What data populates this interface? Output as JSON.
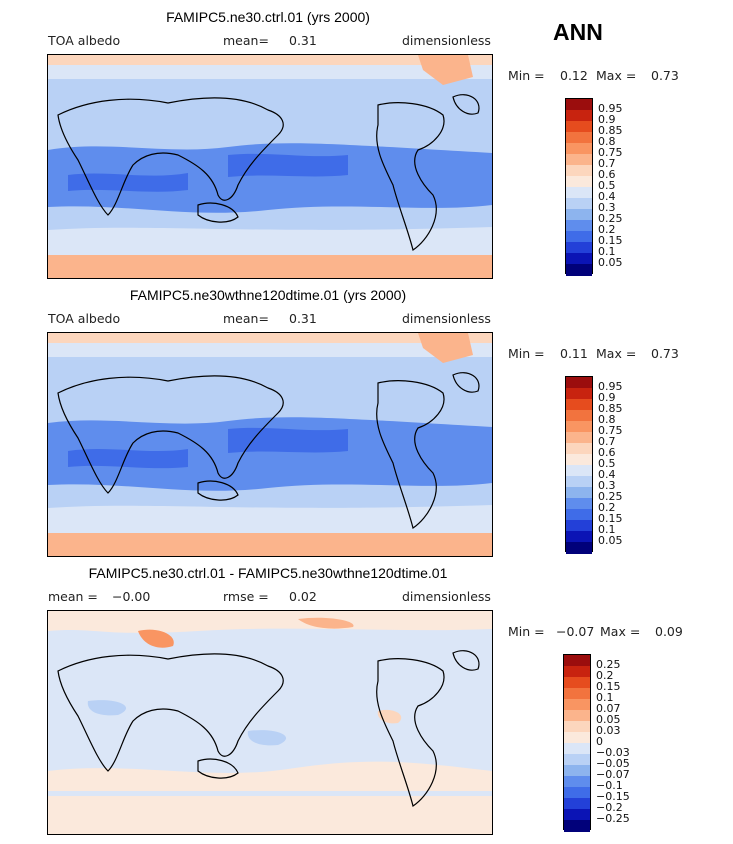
{
  "season": "ANN",
  "panels": [
    {
      "id": "ctrl",
      "title": "FAMIPC5.ne30.ctrl.01 (yrs 2000)",
      "left_label": "TOA albedo",
      "mean_label": "mean=",
      "mean_value": "0.31",
      "units": "dimensionless",
      "min_label": "Min =",
      "min_value": "0.12",
      "max_label": "Max =",
      "max_value": "0.73",
      "colorbar": {
        "labels": [
          "0.95",
          "0.9",
          "0.85",
          "0.8",
          "0.75",
          "0.7",
          "0.6",
          "0.5",
          "0.4",
          "0.3",
          "0.25",
          "0.2",
          "0.15",
          "0.1",
          "0.05"
        ],
        "colors": [
          "#9b0d0d",
          "#c8230f",
          "#e64c1e",
          "#f2733e",
          "#f99562",
          "#fbb48c",
          "#fcd6bd",
          "#fbe9dc",
          "#dbe6f7",
          "#b9d1f5",
          "#8db4ee",
          "#5f8ded",
          "#3f6ce8",
          "#2340d8",
          "#0b14b5",
          "#01017a"
        ]
      }
    },
    {
      "id": "test",
      "title": "FAMIPC5.ne30wthne120dtime.01 (yrs 2000)",
      "left_label": "TOA albedo",
      "mean_label": "mean=",
      "mean_value": "0.31",
      "units": "dimensionless",
      "min_label": "Min =",
      "min_value": "0.11",
      "max_label": "Max =",
      "max_value": "0.73",
      "colorbar": {
        "labels": [
          "0.95",
          "0.9",
          "0.85",
          "0.8",
          "0.75",
          "0.7",
          "0.6",
          "0.5",
          "0.4",
          "0.3",
          "0.25",
          "0.2",
          "0.15",
          "0.1",
          "0.05"
        ],
        "colors": [
          "#9b0d0d",
          "#c8230f",
          "#e64c1e",
          "#f2733e",
          "#f99562",
          "#fbb48c",
          "#fcd6bd",
          "#fbe9dc",
          "#dbe6f7",
          "#b9d1f5",
          "#8db4ee",
          "#5f8ded",
          "#3f6ce8",
          "#2340d8",
          "#0b14b5",
          "#01017a"
        ]
      }
    },
    {
      "id": "diff",
      "title": "FAMIPC5.ne30.ctrl.01 - FAMIPC5.ne30wthne120dtime.01",
      "left_label": "mean =",
      "left_value": "−0.00",
      "mean_label": "rmse =",
      "mean_value": "0.02",
      "units": "dimensionless",
      "min_label": "Min =",
      "min_value": "−0.07",
      "max_label": "Max =",
      "max_value": "0.09",
      "colorbar": {
        "labels": [
          "0.25",
          "0.2",
          "0.15",
          "0.1",
          "0.07",
          "0.05",
          "0.03",
          "0",
          "−0.03",
          "−0.05",
          "−0.07",
          "−0.1",
          "−0.15",
          "−0.2",
          "−0.25"
        ],
        "colors": [
          "#9b0d0d",
          "#c8230f",
          "#e64c1e",
          "#f2733e",
          "#f99562",
          "#fbb48c",
          "#fcd6bd",
          "#fbe9dc",
          "#dbe6f7",
          "#b9d1f5",
          "#8db4ee",
          "#5f8ded",
          "#3f6ce8",
          "#2340d8",
          "#0b14b5",
          "#01017a"
        ]
      }
    }
  ]
}
